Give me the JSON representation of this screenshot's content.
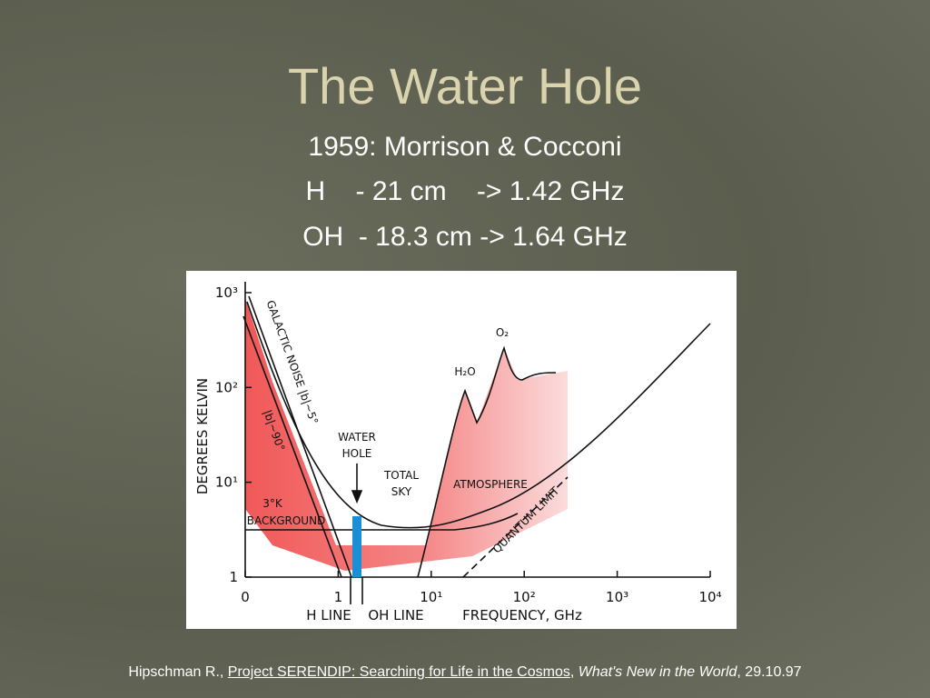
{
  "slide": {
    "title": "The Water Hole",
    "lines": [
      "1959: Morrison & Cocconi",
      "H    - 21 cm    -> 1.42 GHz",
      "OH  - 18.3 cm -> 1.64 GHz"
    ],
    "figure": {
      "y_axis_label": "DEGREES KELVIN",
      "x_axis_label": "FREQUENCY, GHz",
      "y_ticks": [
        "10³",
        "10²",
        "10¹",
        "1"
      ],
      "x_ticks": [
        "0",
        "1",
        "10¹",
        "10²",
        "10³",
        "10⁴"
      ],
      "labels": {
        "water_hole": [
          "WATER",
          "HOLE"
        ],
        "total_sky": [
          "TOTAL",
          "SKY"
        ],
        "atmosphere": "ATMOSPHERE",
        "galactic_5": "GALACTIC NOISE |b|~5°",
        "galactic_90": "|b|~90°",
        "background": [
          "3°K",
          "BACKGROUND"
        ],
        "quantum": "QUANTUM LIMIT",
        "h2o": "H₂O",
        "o2": "O₂",
        "h_line": "H LINE",
        "oh_line": "OH LINE"
      }
    },
    "footnote": {
      "author": "Hipschman R., ",
      "link": "Project SERENDIP: Searching for Life in the Cosmos",
      "sep": ", ",
      "publication": "What's New in the World",
      "date": ", 29.10.97"
    }
  }
}
